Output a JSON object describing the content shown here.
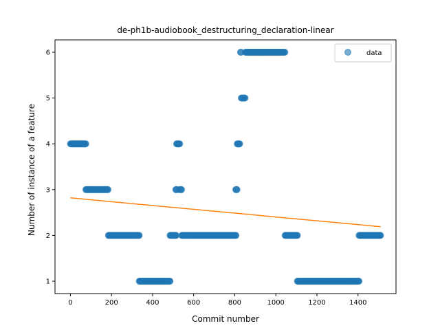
{
  "chart_data": {
    "type": "scatter",
    "title": "de-ph1b-audiobook_destructuring_declaration-linear",
    "xlabel": "Commit number",
    "ylabel": "Number of instance of a feature",
    "xlim": [
      -75,
      1585
    ],
    "ylim": [
      0.73,
      6.27
    ],
    "xticks": [
      0,
      200,
      400,
      600,
      800,
      1000,
      1200,
      1400
    ],
    "yticks": [
      1,
      2,
      3,
      4,
      5,
      6
    ],
    "grid": false,
    "legend": {
      "placement": "upper-right",
      "entries": [
        "data"
      ]
    },
    "colors": {
      "scatter": "#1f77b4",
      "trend": "#ff7f0e"
    },
    "series": [
      {
        "name": "data",
        "kind": "scatter",
        "segments": [
          {
            "x_start": 0,
            "x_end": 75,
            "y": 4
          },
          {
            "x_start": 75,
            "x_end": 185,
            "y": 3
          },
          {
            "x_start": 185,
            "x_end": 335,
            "y": 2
          },
          {
            "x_start": 335,
            "x_end": 485,
            "y": 1
          },
          {
            "x_start": 485,
            "x_end": 515,
            "y": 2
          },
          {
            "x_start": 513,
            "x_end": 520,
            "y": 3
          },
          {
            "x_start": 517,
            "x_end": 532,
            "y": 4
          },
          {
            "x_start": 532,
            "x_end": 542,
            "y": 3
          },
          {
            "x_start": 542,
            "x_end": 808,
            "y": 2
          },
          {
            "x_start": 805,
            "x_end": 812,
            "y": 3
          },
          {
            "x_start": 812,
            "x_end": 825,
            "y": 4
          },
          {
            "x_start": 828,
            "x_end": 832,
            "y": 6
          },
          {
            "x_start": 832,
            "x_end": 852,
            "y": 5
          },
          {
            "x_start": 852,
            "x_end": 1045,
            "y": 6
          },
          {
            "x_start": 1045,
            "x_end": 1105,
            "y": 2
          },
          {
            "x_start": 1105,
            "x_end": 1405,
            "y": 1
          },
          {
            "x_start": 1405,
            "x_end": 1510,
            "y": 2
          }
        ]
      },
      {
        "name": "",
        "kind": "line",
        "x": [
          0,
          1510
        ],
        "y": [
          2.82,
          2.19
        ]
      }
    ]
  }
}
